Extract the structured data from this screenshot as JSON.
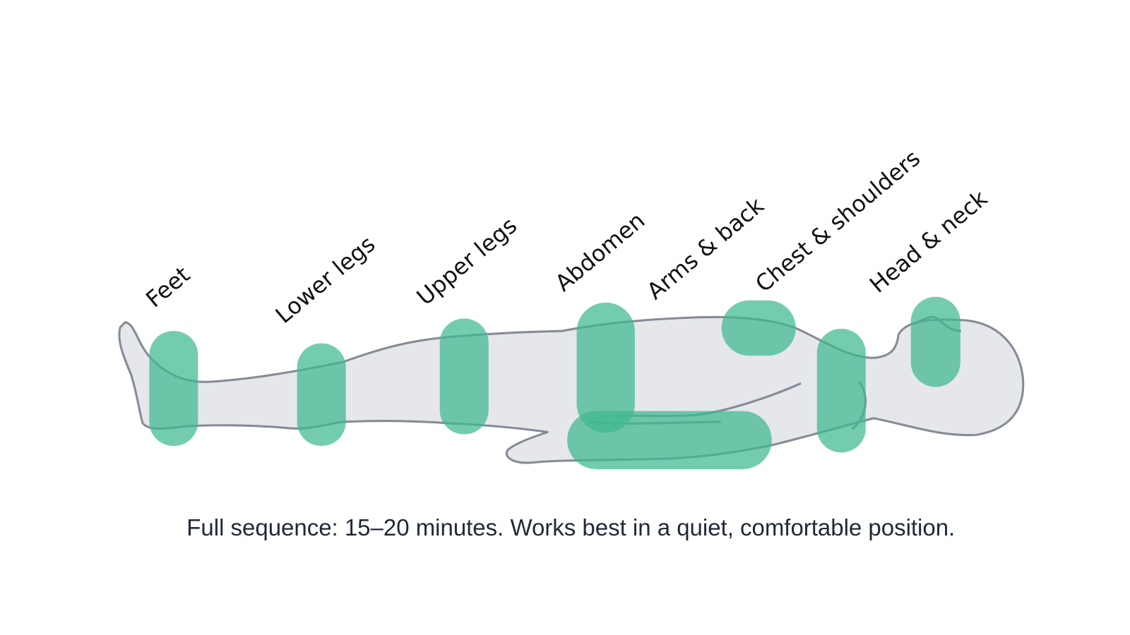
{
  "diagram": {
    "regions": [
      "Feet",
      "Lower legs",
      "Upper legs",
      "Abdomen",
      "Arms & back",
      "Chest & shoulders",
      "Head & neck"
    ]
  },
  "caption": "Full sequence: 15–20 minutes. Works best in a quiet, comfortable position."
}
